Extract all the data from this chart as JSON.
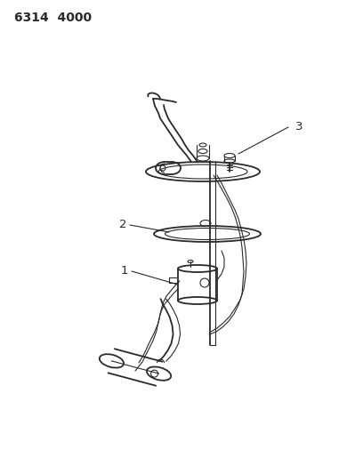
{
  "background_color": "#ffffff",
  "header_text": "6314  4000",
  "header_fontsize": 10,
  "header_fontweight": "bold",
  "line_color": "#2a2a2a",
  "label_color": "#2a2a2a",
  "label_1": "1",
  "label_2": "2",
  "label_3": "3",
  "lw_thin": 0.8,
  "lw_med": 1.3,
  "lw_thick": 2.0
}
